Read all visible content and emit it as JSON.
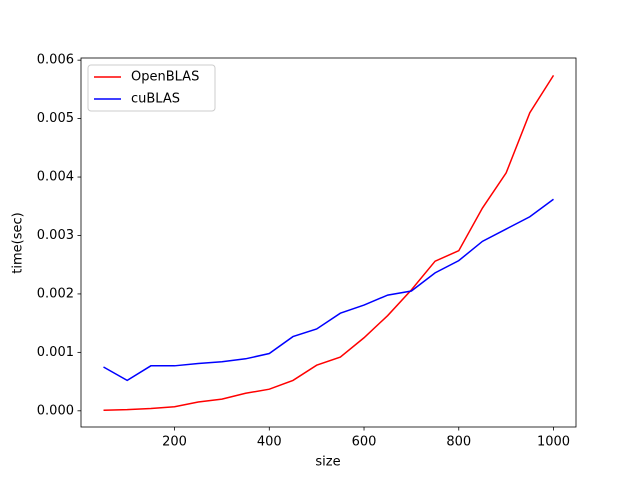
{
  "chart_data": {
    "type": "line",
    "xlabel": "size",
    "ylabel": "time(sec)",
    "x": [
      50,
      100,
      150,
      200,
      250,
      300,
      350,
      400,
      450,
      500,
      550,
      600,
      650,
      700,
      750,
      800,
      850,
      900,
      950,
      1000
    ],
    "series": [
      {
        "name": "OpenBLAS",
        "color": "#ff0000",
        "values": [
          1e-05,
          2e-05,
          4e-05,
          7e-05,
          0.00015,
          0.0002,
          0.0003,
          0.00037,
          0.00052,
          0.00078,
          0.00092,
          0.00125,
          0.00163,
          0.00207,
          0.00256,
          0.00274,
          0.00347,
          0.00407,
          0.0051,
          0.00574
        ]
      },
      {
        "name": "cuBLAS",
        "color": "#0000ff",
        "values": [
          0.00075,
          0.00052,
          0.00077,
          0.00077,
          0.00081,
          0.00084,
          0.00089,
          0.00098,
          0.00127,
          0.0014,
          0.00167,
          0.00181,
          0.00198,
          0.00205,
          0.00236,
          0.00257,
          0.0029,
          0.00311,
          0.00332,
          0.00362
        ]
      }
    ],
    "xlim": [
      2.5,
      1047.5
    ],
    "xticks": [
      200,
      400,
      600,
      800,
      1000
    ],
    "ylim": [
      -0.000277,
      0.006037
    ],
    "yticks": [
      {
        "value": 0,
        "label": "0.000"
      },
      {
        "value": 0.001,
        "label": "0.001"
      },
      {
        "value": 0.002,
        "label": "0.002"
      },
      {
        "value": 0.003,
        "label": "0.003"
      },
      {
        "value": 0.004,
        "label": "0.004"
      },
      {
        "value": 0.005,
        "label": "0.005"
      },
      {
        "value": 0.006,
        "label": "0.006"
      }
    ],
    "legend": "upper left",
    "grid": false
  }
}
